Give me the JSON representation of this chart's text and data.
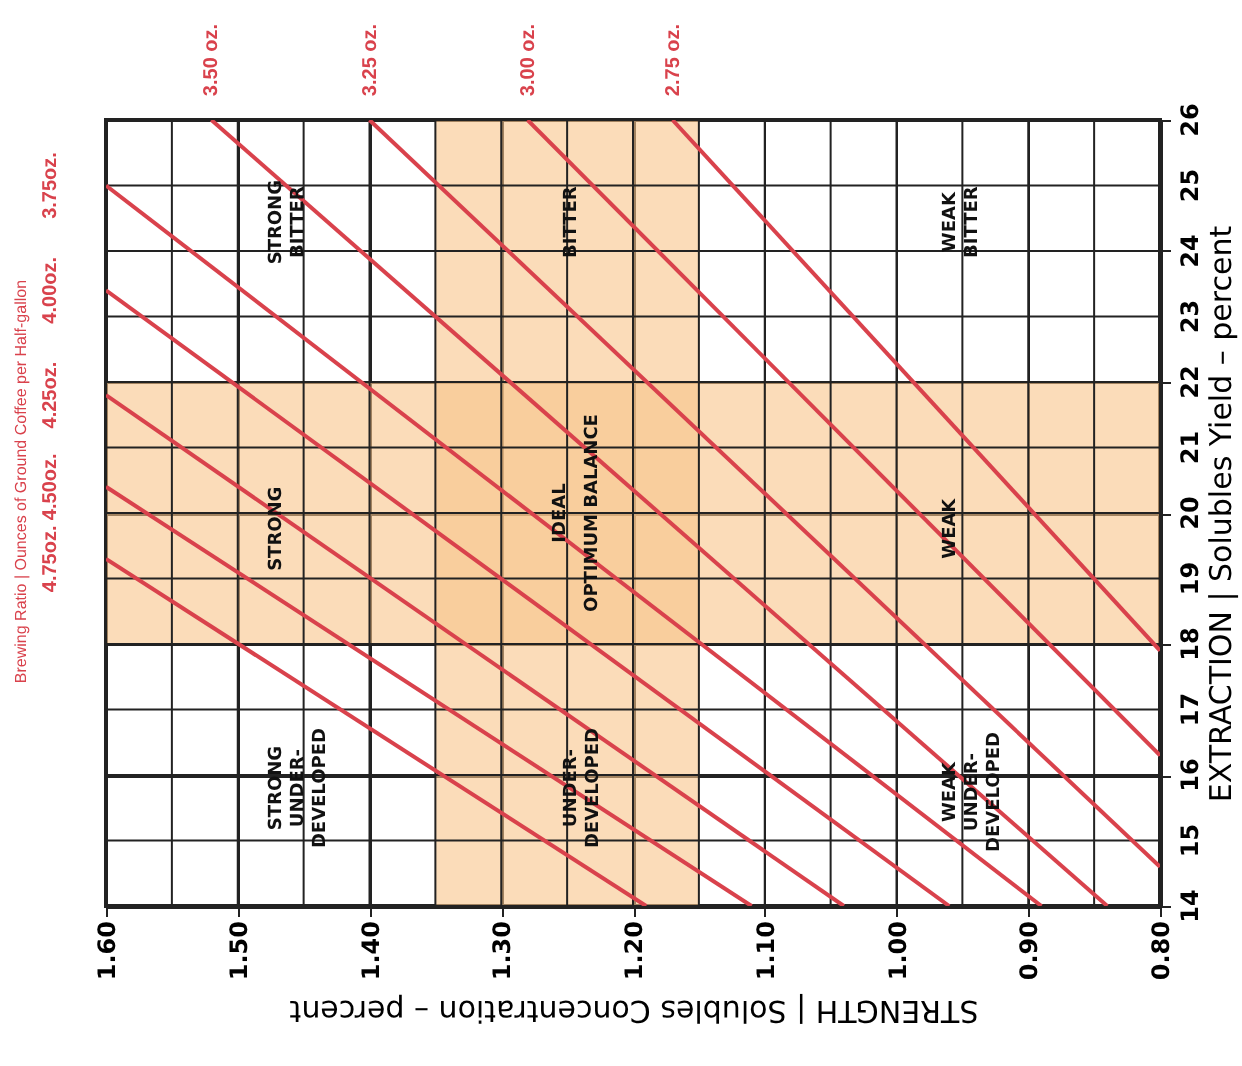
{
  "chart_data": {
    "type": "line",
    "xlabel": "STRENGTH | Solubles Concentration – percent",
    "ylabel": "EXTRACTION | Solubles Yield – percent",
    "legend_title": "Brewing Ratio | Ounces of Ground Coffee per Half-gallon",
    "ylim": [
      14,
      26
    ],
    "yticks": [
      14,
      15,
      16,
      17,
      18,
      19,
      20,
      21,
      22,
      23,
      24,
      25,
      26
    ],
    "xlim": [
      1.6,
      0.8
    ],
    "xticks": [
      {
        "value": 1.6,
        "label": "1.60"
      },
      {
        "value": 1.55,
        "label": null
      },
      {
        "value": 1.5,
        "label": "1.50"
      },
      {
        "value": 1.45,
        "label": null
      },
      {
        "value": 1.4,
        "label": "1.40"
      },
      {
        "value": 1.35,
        "label": null
      },
      {
        "value": 1.3,
        "label": "1.30"
      },
      {
        "value": 1.25,
        "label": null
      },
      {
        "value": 1.2,
        "label": "1.20"
      },
      {
        "value": 1.15,
        "label": null
      },
      {
        "value": 1.1,
        "label": "1.10"
      },
      {
        "value": 1.05,
        "label": null
      },
      {
        "value": 1.0,
        "label": "1.00"
      },
      {
        "value": 0.95,
        "label": null
      },
      {
        "value": 0.9,
        "label": "0.90"
      },
      {
        "value": 0.85,
        "label": null
      },
      {
        "value": 0.8,
        "label": "0.80"
      }
    ],
    "grid": true,
    "marker": "none",
    "line_style": "solid",
    "bands": [
      {
        "axis": "y",
        "from": 18,
        "to": 22,
        "color": "#f9c48a"
      },
      {
        "axis": "x",
        "from": 1.15,
        "to": 1.35,
        "color": "#f9c48a"
      }
    ],
    "series": [
      {
        "name": "4.75oz.",
        "color": "#d9424c",
        "x": [
          1.6,
          1.19
        ],
        "values": [
          19.3,
          14
        ]
      },
      {
        "name": "4.50oz.",
        "color": "#d9424c",
        "x": [
          1.6,
          1.11
        ],
        "values": [
          20.4,
          14
        ]
      },
      {
        "name": "4.25oz.",
        "color": "#d9424c",
        "x": [
          1.6,
          1.04
        ],
        "values": [
          21.8,
          14
        ]
      },
      {
        "name": "4.00oz.",
        "color": "#d9424c",
        "x": [
          1.6,
          0.96
        ],
        "values": [
          23.4,
          14
        ]
      },
      {
        "name": "3.75oz.",
        "color": "#d9424c",
        "x": [
          1.6,
          0.89
        ],
        "values": [
          25.0,
          14
        ]
      },
      {
        "name": "3.50 oz.",
        "color": "#d9424c",
        "x": [
          1.52,
          0.84
        ],
        "values": [
          26,
          14
        ]
      },
      {
        "name": "3.25 oz.",
        "color": "#d9424c",
        "x": [
          1.4,
          0.8
        ],
        "values": [
          26,
          14.6
        ]
      },
      {
        "name": "3.00 oz.",
        "color": "#d9424c",
        "x": [
          1.28,
          0.8
        ],
        "values": [
          26,
          16.3
        ]
      },
      {
        "name": "2.75 oz.",
        "color": "#d9424c",
        "x": [
          1.17,
          0.8
        ],
        "values": [
          26,
          17.9
        ]
      }
    ],
    "annotations": [
      "STRONG\nBITTER",
      "BITTER",
      "WEAK\nBITTER",
      "STRONG",
      "IDEAL",
      "OPTIMUM BALANCE",
      "WEAK",
      "STRONG\nUNDER-\nDEVELOPED",
      "UNDER-\nDEVELOPED",
      "WEAK\nUNDER-\nDEVELOPED"
    ]
  }
}
